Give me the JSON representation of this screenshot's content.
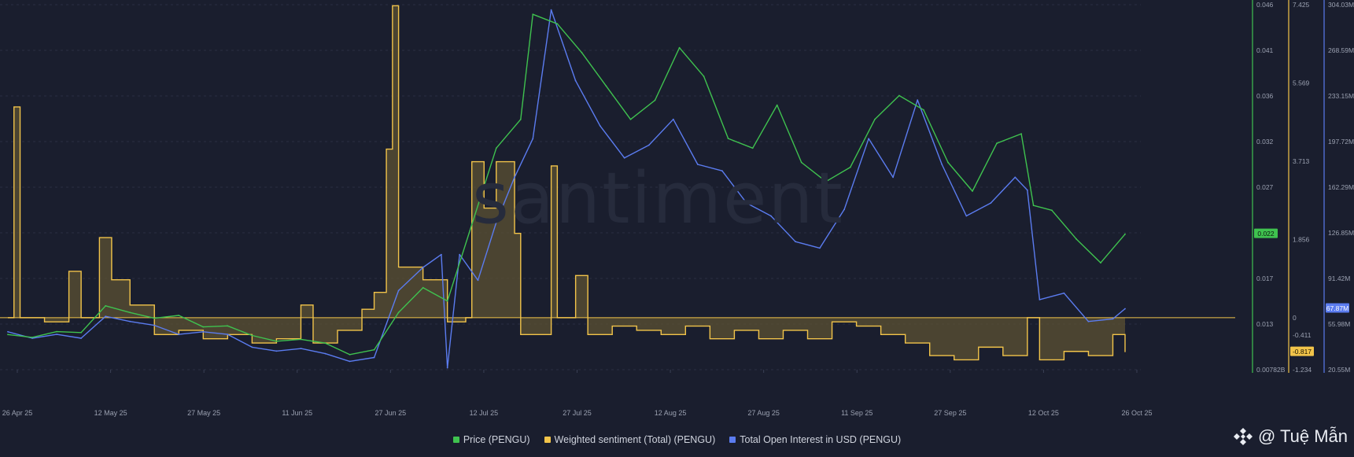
{
  "watermark": "santiment",
  "legend": {
    "price": "Price (PENGU)",
    "sentiment": "Weighted sentiment (Total) (PENGU)",
    "oi": "Total Open Interest in USD (PENGU)"
  },
  "credit": {
    "text": "@ Tuệ Mẫn",
    "icon": "binance-diamond-icon"
  },
  "colors": {
    "background": "#1a1e2e",
    "price": "#3fc24f",
    "sentiment": "#f2c44a",
    "sentiment_fill": "#5c5233",
    "oi": "#5b7cf0",
    "grid": "#2a2f42",
    "axis_text": "#9aa0b0"
  },
  "chart_data": {
    "type": "line",
    "title": "",
    "grid": true,
    "legend_position": "bottom-center",
    "x_ticks": [
      "26 Apr 25",
      "12 May 25",
      "27 May 25",
      "11 Jun 25",
      "27 Jun 25",
      "12 Jul 25",
      "27 Jul 25",
      "12 Aug 25",
      "27 Aug 25",
      "11 Sep 25",
      "27 Sep 25",
      "12 Oct 25",
      "26 Oct 25"
    ],
    "x_range": [
      "2025-04-26",
      "2025-10-26"
    ],
    "axes": {
      "price": {
        "ticks": [
          "0.046",
          "0.041",
          "0.036",
          "0.032",
          "0.027",
          "0.022",
          "0.017",
          "0.013",
          "0.00782B"
        ],
        "range": [
          0.00782,
          0.046
        ],
        "current": "0.022"
      },
      "sentiment": {
        "ticks": [
          "7.425",
          "5.569",
          "3.713",
          "1.856",
          "0",
          "-0.411",
          "-1.234"
        ],
        "range": [
          -1.234,
          7.425
        ],
        "current": "-0.817"
      },
      "oi": {
        "ticks": [
          "304.03M",
          "268.59M",
          "233.15M",
          "197.72M",
          "162.29M",
          "126.85M",
          "91.42M",
          "55.98M",
          "20.55M"
        ],
        "range": [
          20.55,
          304.03
        ],
        "unit": "M",
        "current": "67.87M"
      }
    },
    "series": [
      {
        "name": "Price (PENGU)",
        "axis": "price",
        "points": [
          [
            "2025-04-26",
            0.0115
          ],
          [
            "2025-04-30",
            0.0112
          ],
          [
            "2025-05-04",
            0.0118
          ],
          [
            "2025-05-08",
            0.0117
          ],
          [
            "2025-05-12",
            0.0145
          ],
          [
            "2025-05-16",
            0.0138
          ],
          [
            "2025-05-20",
            0.0132
          ],
          [
            "2025-05-24",
            0.0135
          ],
          [
            "2025-05-28",
            0.0123
          ],
          [
            "2025-06-01",
            0.0124
          ],
          [
            "2025-06-05",
            0.0114
          ],
          [
            "2025-06-09",
            0.0108
          ],
          [
            "2025-06-13",
            0.011
          ],
          [
            "2025-06-17",
            0.0106
          ],
          [
            "2025-06-21",
            0.0094
          ],
          [
            "2025-06-25",
            0.0099
          ],
          [
            "2025-06-29",
            0.0138
          ],
          [
            "2025-07-03",
            0.0164
          ],
          [
            "2025-07-07",
            0.015
          ],
          [
            "2025-07-11",
            0.023
          ],
          [
            "2025-07-15",
            0.031
          ],
          [
            "2025-07-19",
            0.034
          ],
          [
            "2025-07-21",
            0.045
          ],
          [
            "2025-07-25",
            0.044
          ],
          [
            "2025-07-29",
            0.041
          ],
          [
            "2025-08-02",
            0.0375
          ],
          [
            "2025-08-06",
            0.034
          ],
          [
            "2025-08-10",
            0.036
          ],
          [
            "2025-08-14",
            0.0415
          ],
          [
            "2025-08-18",
            0.0385
          ],
          [
            "2025-08-22",
            0.032
          ],
          [
            "2025-08-26",
            0.031
          ],
          [
            "2025-08-30",
            0.0355
          ],
          [
            "2025-09-03",
            0.0295
          ],
          [
            "2025-09-07",
            0.0275
          ],
          [
            "2025-09-11",
            0.029
          ],
          [
            "2025-09-15",
            0.034
          ],
          [
            "2025-09-19",
            0.0365
          ],
          [
            "2025-09-23",
            0.035
          ],
          [
            "2025-09-27",
            0.0295
          ],
          [
            "2025-10-01",
            0.0265
          ],
          [
            "2025-10-05",
            0.0315
          ],
          [
            "2025-10-09",
            0.0325
          ],
          [
            "2025-10-11",
            0.025
          ],
          [
            "2025-10-14",
            0.0245
          ],
          [
            "2025-10-18",
            0.0215
          ],
          [
            "2025-10-22",
            0.019
          ],
          [
            "2025-10-26",
            0.022
          ]
        ]
      },
      {
        "name": "Weighted sentiment (Total) (PENGU)",
        "axis": "sentiment",
        "points": [
          [
            "2025-04-26",
            0.0
          ],
          [
            "2025-04-27",
            5.0
          ],
          [
            "2025-04-28",
            0.0
          ],
          [
            "2025-05-02",
            -0.1
          ],
          [
            "2025-05-06",
            1.1
          ],
          [
            "2025-05-08",
            0.0
          ],
          [
            "2025-05-11",
            1.9
          ],
          [
            "2025-05-13",
            0.9
          ],
          [
            "2025-05-16",
            0.3
          ],
          [
            "2025-05-20",
            -0.4
          ],
          [
            "2025-05-24",
            -0.3
          ],
          [
            "2025-05-28",
            -0.5
          ],
          [
            "2025-06-01",
            -0.4
          ],
          [
            "2025-06-05",
            -0.6
          ],
          [
            "2025-06-09",
            -0.5
          ],
          [
            "2025-06-13",
            0.3
          ],
          [
            "2025-06-15",
            -0.6
          ],
          [
            "2025-06-19",
            -0.3
          ],
          [
            "2025-06-23",
            0.2
          ],
          [
            "2025-06-25",
            0.6
          ],
          [
            "2025-06-27",
            4.0
          ],
          [
            "2025-06-28",
            7.4
          ],
          [
            "2025-06-29",
            1.2
          ],
          [
            "2025-07-03",
            0.9
          ],
          [
            "2025-07-07",
            -0.1
          ],
          [
            "2025-07-10",
            0.0
          ],
          [
            "2025-07-11",
            3.7
          ],
          [
            "2025-07-13",
            2.6
          ],
          [
            "2025-07-15",
            3.7
          ],
          [
            "2025-07-18",
            2.0
          ],
          [
            "2025-07-19",
            -0.4
          ],
          [
            "2025-07-23",
            -0.4
          ],
          [
            "2025-07-24",
            3.6
          ],
          [
            "2025-07-25",
            0.0
          ],
          [
            "2025-07-28",
            1.0
          ],
          [
            "2025-07-30",
            -0.4
          ],
          [
            "2025-08-03",
            -0.2
          ],
          [
            "2025-08-07",
            -0.3
          ],
          [
            "2025-08-11",
            -0.4
          ],
          [
            "2025-08-15",
            -0.2
          ],
          [
            "2025-08-19",
            -0.5
          ],
          [
            "2025-08-23",
            -0.3
          ],
          [
            "2025-08-27",
            -0.5
          ],
          [
            "2025-08-31",
            -0.3
          ],
          [
            "2025-09-04",
            -0.5
          ],
          [
            "2025-09-08",
            -0.1
          ],
          [
            "2025-09-12",
            -0.2
          ],
          [
            "2025-09-16",
            -0.4
          ],
          [
            "2025-09-20",
            -0.6
          ],
          [
            "2025-09-24",
            -0.9
          ],
          [
            "2025-09-28",
            -1.0
          ],
          [
            "2025-10-02",
            -0.7
          ],
          [
            "2025-10-06",
            -0.9
          ],
          [
            "2025-10-10",
            0.0
          ],
          [
            "2025-10-12",
            -1.0
          ],
          [
            "2025-10-16",
            -0.8
          ],
          [
            "2025-10-20",
            -0.9
          ],
          [
            "2025-10-24",
            -0.4
          ],
          [
            "2025-10-26",
            -0.817
          ]
        ]
      },
      {
        "name": "Total Open Interest in USD (PENGU)",
        "axis": "oi",
        "points": [
          [
            "2025-04-26",
            50
          ],
          [
            "2025-04-30",
            45
          ],
          [
            "2025-05-04",
            48
          ],
          [
            "2025-05-08",
            45
          ],
          [
            "2025-05-12",
            62
          ],
          [
            "2025-05-16",
            58
          ],
          [
            "2025-05-20",
            55
          ],
          [
            "2025-05-24",
            48
          ],
          [
            "2025-05-28",
            50
          ],
          [
            "2025-06-01",
            48
          ],
          [
            "2025-06-05",
            38
          ],
          [
            "2025-06-09",
            35
          ],
          [
            "2025-06-13",
            37
          ],
          [
            "2025-06-17",
            33
          ],
          [
            "2025-06-21",
            27
          ],
          [
            "2025-06-25",
            30
          ],
          [
            "2025-06-29",
            82
          ],
          [
            "2025-07-03",
            100
          ],
          [
            "2025-07-06",
            110
          ],
          [
            "2025-07-07",
            22
          ],
          [
            "2025-07-09",
            110
          ],
          [
            "2025-07-12",
            90
          ],
          [
            "2025-07-15",
            135
          ],
          [
            "2025-07-18",
            170
          ],
          [
            "2025-07-21",
            200
          ],
          [
            "2025-07-24",
            300
          ],
          [
            "2025-07-28",
            245
          ],
          [
            "2025-08-01",
            210
          ],
          [
            "2025-08-05",
            185
          ],
          [
            "2025-08-09",
            195
          ],
          [
            "2025-08-13",
            215
          ],
          [
            "2025-08-17",
            180
          ],
          [
            "2025-08-21",
            175
          ],
          [
            "2025-08-25",
            150
          ],
          [
            "2025-08-29",
            140
          ],
          [
            "2025-09-02",
            120
          ],
          [
            "2025-09-06",
            115
          ],
          [
            "2025-09-10",
            145
          ],
          [
            "2025-09-14",
            200
          ],
          [
            "2025-09-18",
            170
          ],
          [
            "2025-09-22",
            230
          ],
          [
            "2025-09-26",
            180
          ],
          [
            "2025-09-30",
            140
          ],
          [
            "2025-10-04",
            150
          ],
          [
            "2025-10-08",
            170
          ],
          [
            "2025-10-10",
            160
          ],
          [
            "2025-10-12",
            75
          ],
          [
            "2025-10-16",
            80
          ],
          [
            "2025-10-20",
            58
          ],
          [
            "2025-10-24",
            60
          ],
          [
            "2025-10-26",
            67.87
          ]
        ]
      }
    ]
  }
}
